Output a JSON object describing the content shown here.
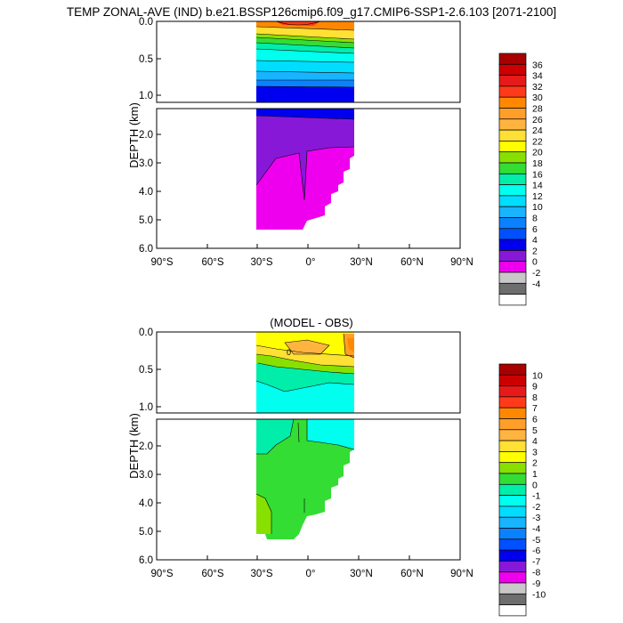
{
  "title": "TEMP ZONAL-AVE (IND) b.e21.BSSP126cmip6.f09_g17.CMIP6-SSP1-2.6.103 [2071-2100]",
  "chart_data": [
    {
      "type": "contour",
      "title": "",
      "ylabel": "DEPTH (km)",
      "xlim": [
        -90,
        90
      ],
      "ylim_km": [
        6.0,
        0.0
      ],
      "upper_panel_range_km": [
        0,
        1.1
      ],
      "x_ticks": [
        "90°S",
        "60°S",
        "30°S",
        "0°",
        "30°N",
        "60°N",
        "90°N"
      ],
      "y_ticks_upper": [
        "0.0",
        "0.5",
        "1.0"
      ],
      "y_ticks_lower": [
        "2.0",
        "3.0",
        "4.0",
        "5.0",
        "6.0"
      ],
      "colorbar_labels": [
        "36",
        "34",
        "32",
        "30",
        "28",
        "26",
        "24",
        "22",
        "20",
        "18",
        "16",
        "14",
        "12",
        "10",
        "8",
        "6",
        "4",
        "2",
        "0",
        "-2",
        "-4"
      ],
      "colorbar_colors": [
        "#a80000",
        "#cc0000",
        "#e61a1a",
        "#ff3a1a",
        "#ff8800",
        "#ff9f2a",
        "#ffb440",
        "#ffe034",
        "#ffff00",
        "#88e000",
        "#33dd33",
        "#00eeaa",
        "#00ffee",
        "#00ddff",
        "#18b4ff",
        "#0a82ff",
        "#0050ff",
        "#0000ee",
        "#8818d8",
        "#ee00ee",
        "#c8c8c8",
        "#6e6e6e",
        "#ffffff"
      ],
      "lat_extent": [
        -34,
        24
      ],
      "depth_bands_upper": [
        {
          "z": [
            0.0,
            0.05
          ],
          "color": "#ff8800"
        },
        {
          "z": [
            0.05,
            0.12
          ],
          "color": "#ffe034"
        },
        {
          "z": [
            0.12,
            0.2
          ],
          "color": "#33dd33"
        },
        {
          "z": [
            0.2,
            0.3
          ],
          "color": "#00eeaa"
        },
        {
          "z": [
            0.3,
            0.45
          ],
          "color": "#00ffee"
        },
        {
          "z": [
            0.45,
            0.6
          ],
          "color": "#00ddff"
        },
        {
          "z": [
            0.6,
            0.75
          ],
          "color": "#18b4ff"
        },
        {
          "z": [
            0.75,
            0.9
          ],
          "color": "#0a82ff"
        },
        {
          "z": [
            0.9,
            1.1
          ],
          "color": "#0000ee"
        }
      ],
      "depth_bands_lower": [
        {
          "z": [
            1.1,
            2.3
          ],
          "color": "#8818d8"
        },
        {
          "z": [
            2.3,
            5.4
          ],
          "color": "#ee00ee"
        }
      ]
    },
    {
      "type": "contour",
      "title": "(MODEL - OBS)",
      "ylabel": "DEPTH (km)",
      "xlim": [
        -90,
        90
      ],
      "ylim_km": [
        6.0,
        0.0
      ],
      "upper_panel_range_km": [
        0,
        1.1
      ],
      "x_ticks": [
        "90°S",
        "60°S",
        "30°S",
        "0°",
        "30°N",
        "60°N",
        "90°N"
      ],
      "y_ticks_upper": [
        "0.0",
        "0.5",
        "1.0"
      ],
      "y_ticks_lower": [
        "2.0",
        "3.0",
        "4.0",
        "5.0",
        "6.0"
      ],
      "colorbar_labels": [
        "10",
        "9",
        "8",
        "7",
        "6",
        "5",
        "4",
        "3",
        "2",
        "1",
        "0",
        "-1",
        "-2",
        "-3",
        "-4",
        "-5",
        "-6",
        "-7",
        "-8",
        "-9",
        "-10"
      ],
      "colorbar_colors": [
        "#a80000",
        "#cc0000",
        "#e61a1a",
        "#ff3a1a",
        "#ff8800",
        "#ff9f2a",
        "#ffb440",
        "#ffe034",
        "#ffff00",
        "#88e000",
        "#33dd33",
        "#00eeaa",
        "#00ffee",
        "#00ddff",
        "#18b4ff",
        "#0a82ff",
        "#0050ff",
        "#0000ee",
        "#8818d8",
        "#ee00ee",
        "#c8c8c8",
        "#6e6e6e",
        "#ffffff"
      ],
      "contour_label": "0",
      "lat_extent": [
        -34,
        24
      ]
    }
  ]
}
